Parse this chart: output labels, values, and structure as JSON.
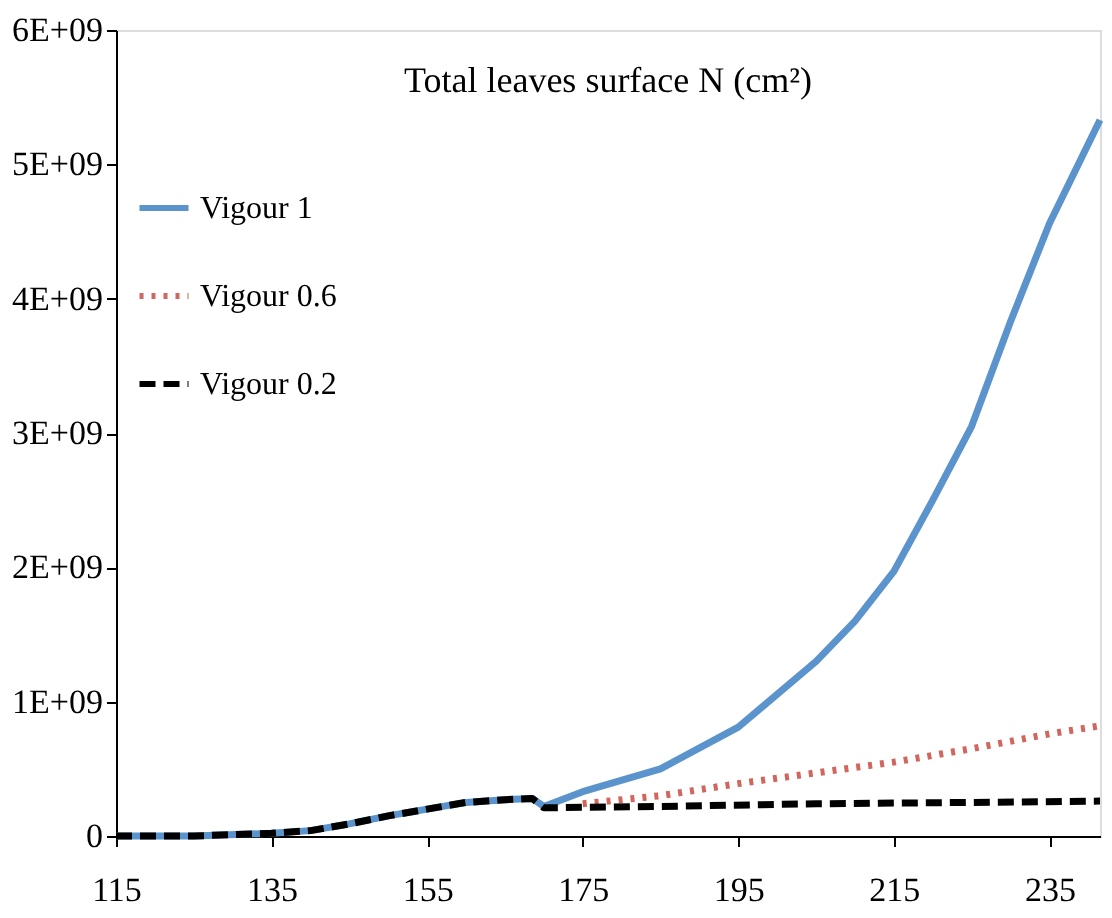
{
  "chart_data": {
    "type": "line",
    "title": "Total leaves surface N (cm²)",
    "xlim": [
      115,
      241.5
    ],
    "xticks": [
      115,
      135,
      155,
      175,
      195,
      215,
      235
    ],
    "ylim": [
      0,
      6000000000
    ],
    "yticks": [
      0,
      {
        "value": 1000000000,
        "label": "1E+09"
      },
      {
        "value": 2000000000,
        "label": "2E+09"
      },
      {
        "value": 3000000000,
        "label": "3E+09"
      },
      {
        "value": 4000000000,
        "label": "4E+09"
      },
      {
        "value": 5000000000,
        "label": "5E+09"
      },
      {
        "value": 6000000000,
        "label": "6E+09"
      }
    ],
    "grid": false,
    "legend": "top left",
    "marker": "none",
    "series": [
      {
        "name": "Vigour 1",
        "color": "#5b93cc",
        "line_style": "solid",
        "x": [
          115,
          125,
          135,
          140,
          145,
          150,
          155,
          160,
          165,
          168.5,
          170,
          175,
          185,
          195,
          205,
          210,
          215,
          220,
          225,
          230,
          235,
          241.5
        ],
        "values": [
          0,
          0,
          20000000,
          40000000,
          90000000,
          150000000,
          200000000,
          250000000,
          270000000,
          280000000,
          220000000,
          330000000,
          500000000,
          810000000,
          1300000000,
          1600000000,
          1970000000,
          2500000000,
          3050000000,
          3830000000,
          4560000000,
          5330000000
        ]
      },
      {
        "name": "Vigour 0.6",
        "color": "#d0665e",
        "line_style": "dotted",
        "x": [
          175,
          185,
          195,
          205,
          215,
          225,
          235,
          241.5
        ],
        "values": [
          240000000,
          300000000,
          390000000,
          470000000,
          550000000,
          650000000,
          760000000,
          820000000
        ]
      },
      {
        "name": "Vigour 0.2",
        "color": "#000000",
        "line_style": "dashed",
        "x": [
          115,
          125,
          135,
          140,
          145,
          150,
          155,
          160,
          165,
          168.5,
          170,
          185,
          205,
          225,
          241.5
        ],
        "values": [
          0,
          0,
          20000000,
          40000000,
          90000000,
          150000000,
          200000000,
          250000000,
          270000000,
          280000000,
          210000000,
          220000000,
          240000000,
          250000000,
          260000000
        ]
      }
    ]
  }
}
